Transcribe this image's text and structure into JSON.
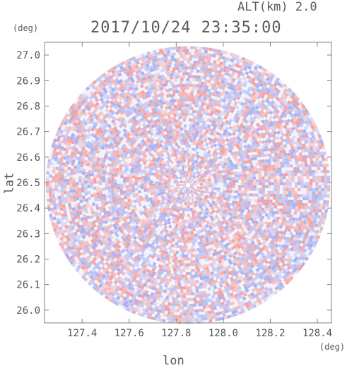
{
  "header": {
    "datetime": "2017/10/24 23:35:00",
    "altitude": "ALT(km) 2.0"
  },
  "chart_data": {
    "type": "heatmap",
    "title": "2017/10/24 23:35:00",
    "subtitle": "ALT(km) 2.0",
    "xlabel": "lon",
    "ylabel": "lat",
    "x_unit": "(deg)",
    "y_unit": "(deg)",
    "xlim": [
      127.24,
      128.46
    ],
    "ylim": [
      25.95,
      27.05
    ],
    "x_ticks": [
      "127.4",
      "127.6",
      "127.8",
      "128.0",
      "128.2",
      "128.4"
    ],
    "y_ticks": [
      "26.0",
      "26.1",
      "26.2",
      "26.3",
      "26.4",
      "26.5",
      "26.6",
      "26.7",
      "26.8",
      "26.9",
      "27.0"
    ],
    "x_tick_values": [
      127.4,
      127.6,
      127.8,
      128.0,
      128.2,
      128.4
    ],
    "y_tick_values": [
      26.0,
      26.1,
      26.2,
      26.3,
      26.4,
      26.5,
      26.6,
      26.7,
      26.8,
      26.9,
      27.0
    ],
    "radar_center": {
      "lon": 127.85,
      "lat": 26.49
    },
    "radar_radius_deg": {
      "lon": 0.605,
      "lat": 0.545
    },
    "colors": {
      "positive": "#f4a3a3",
      "negative": "#a9b3f2",
      "frame": "#808080"
    }
  }
}
